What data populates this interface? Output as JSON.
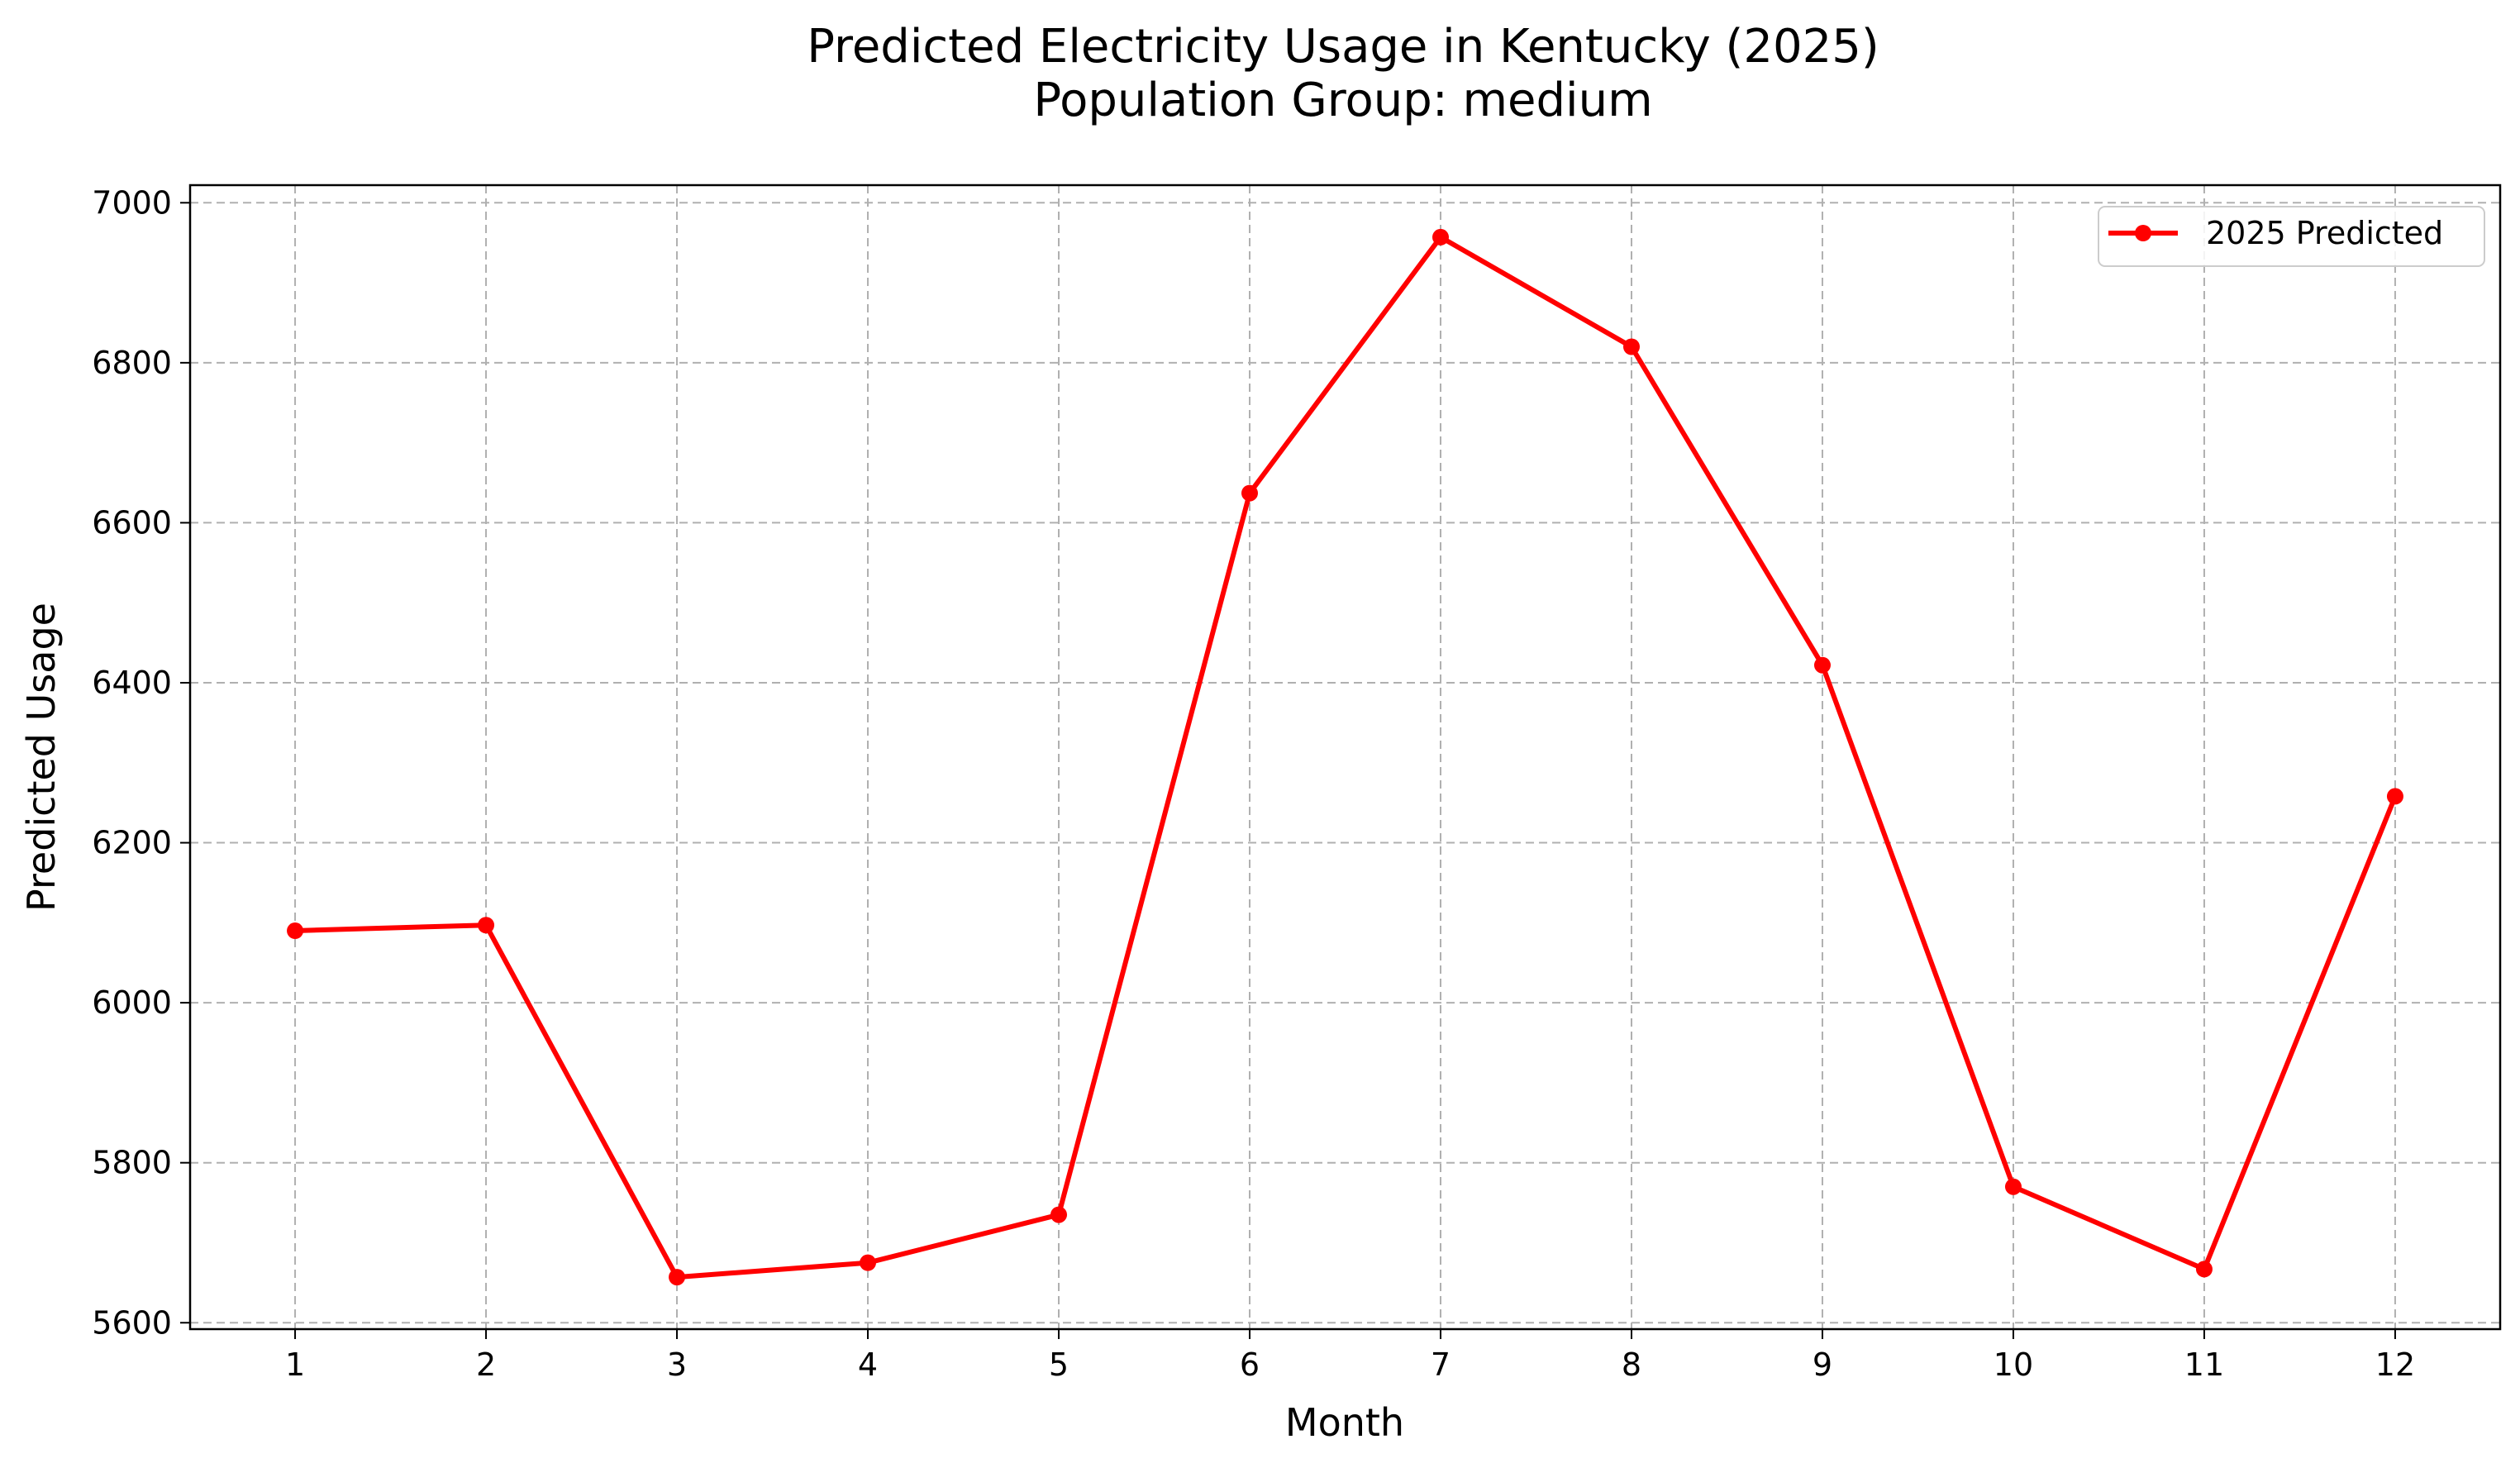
{
  "colors": {
    "series": "#ff0000",
    "grid": "#b0b0b0",
    "background": "#ffffff"
  },
  "chart_data": {
    "type": "line",
    "title": "Predicted Electricity Usage in Kentucky (2025)",
    "subtitle": "Population Group: medium",
    "xlabel": "Month",
    "ylabel": "Predicted Usage",
    "x": [
      1,
      2,
      3,
      4,
      5,
      6,
      7,
      8,
      9,
      10,
      11,
      12
    ],
    "x_tick_labels": [
      "1",
      "2",
      "3",
      "4",
      "5",
      "6",
      "7",
      "8",
      "9",
      "10",
      "11",
      "12"
    ],
    "y_ticks": [
      5600,
      5800,
      6000,
      6200,
      6400,
      6600,
      6800,
      7000
    ],
    "y_tick_labels": [
      "5600",
      "5800",
      "6000",
      "6200",
      "6400",
      "6600",
      "6800",
      "7000"
    ],
    "xlim": [
      0.45,
      12.55
    ],
    "ylim": [
      5592,
      7022
    ],
    "grid": true,
    "legend_position": "top-right",
    "series": [
      {
        "name": "2025 Predicted",
        "color": "#ff0000",
        "marker": "circle",
        "values": [
          6090,
          6097,
          5657,
          5675,
          5735,
          6637,
          6957,
          6820,
          6422,
          5770,
          5667,
          6258
        ]
      }
    ]
  }
}
